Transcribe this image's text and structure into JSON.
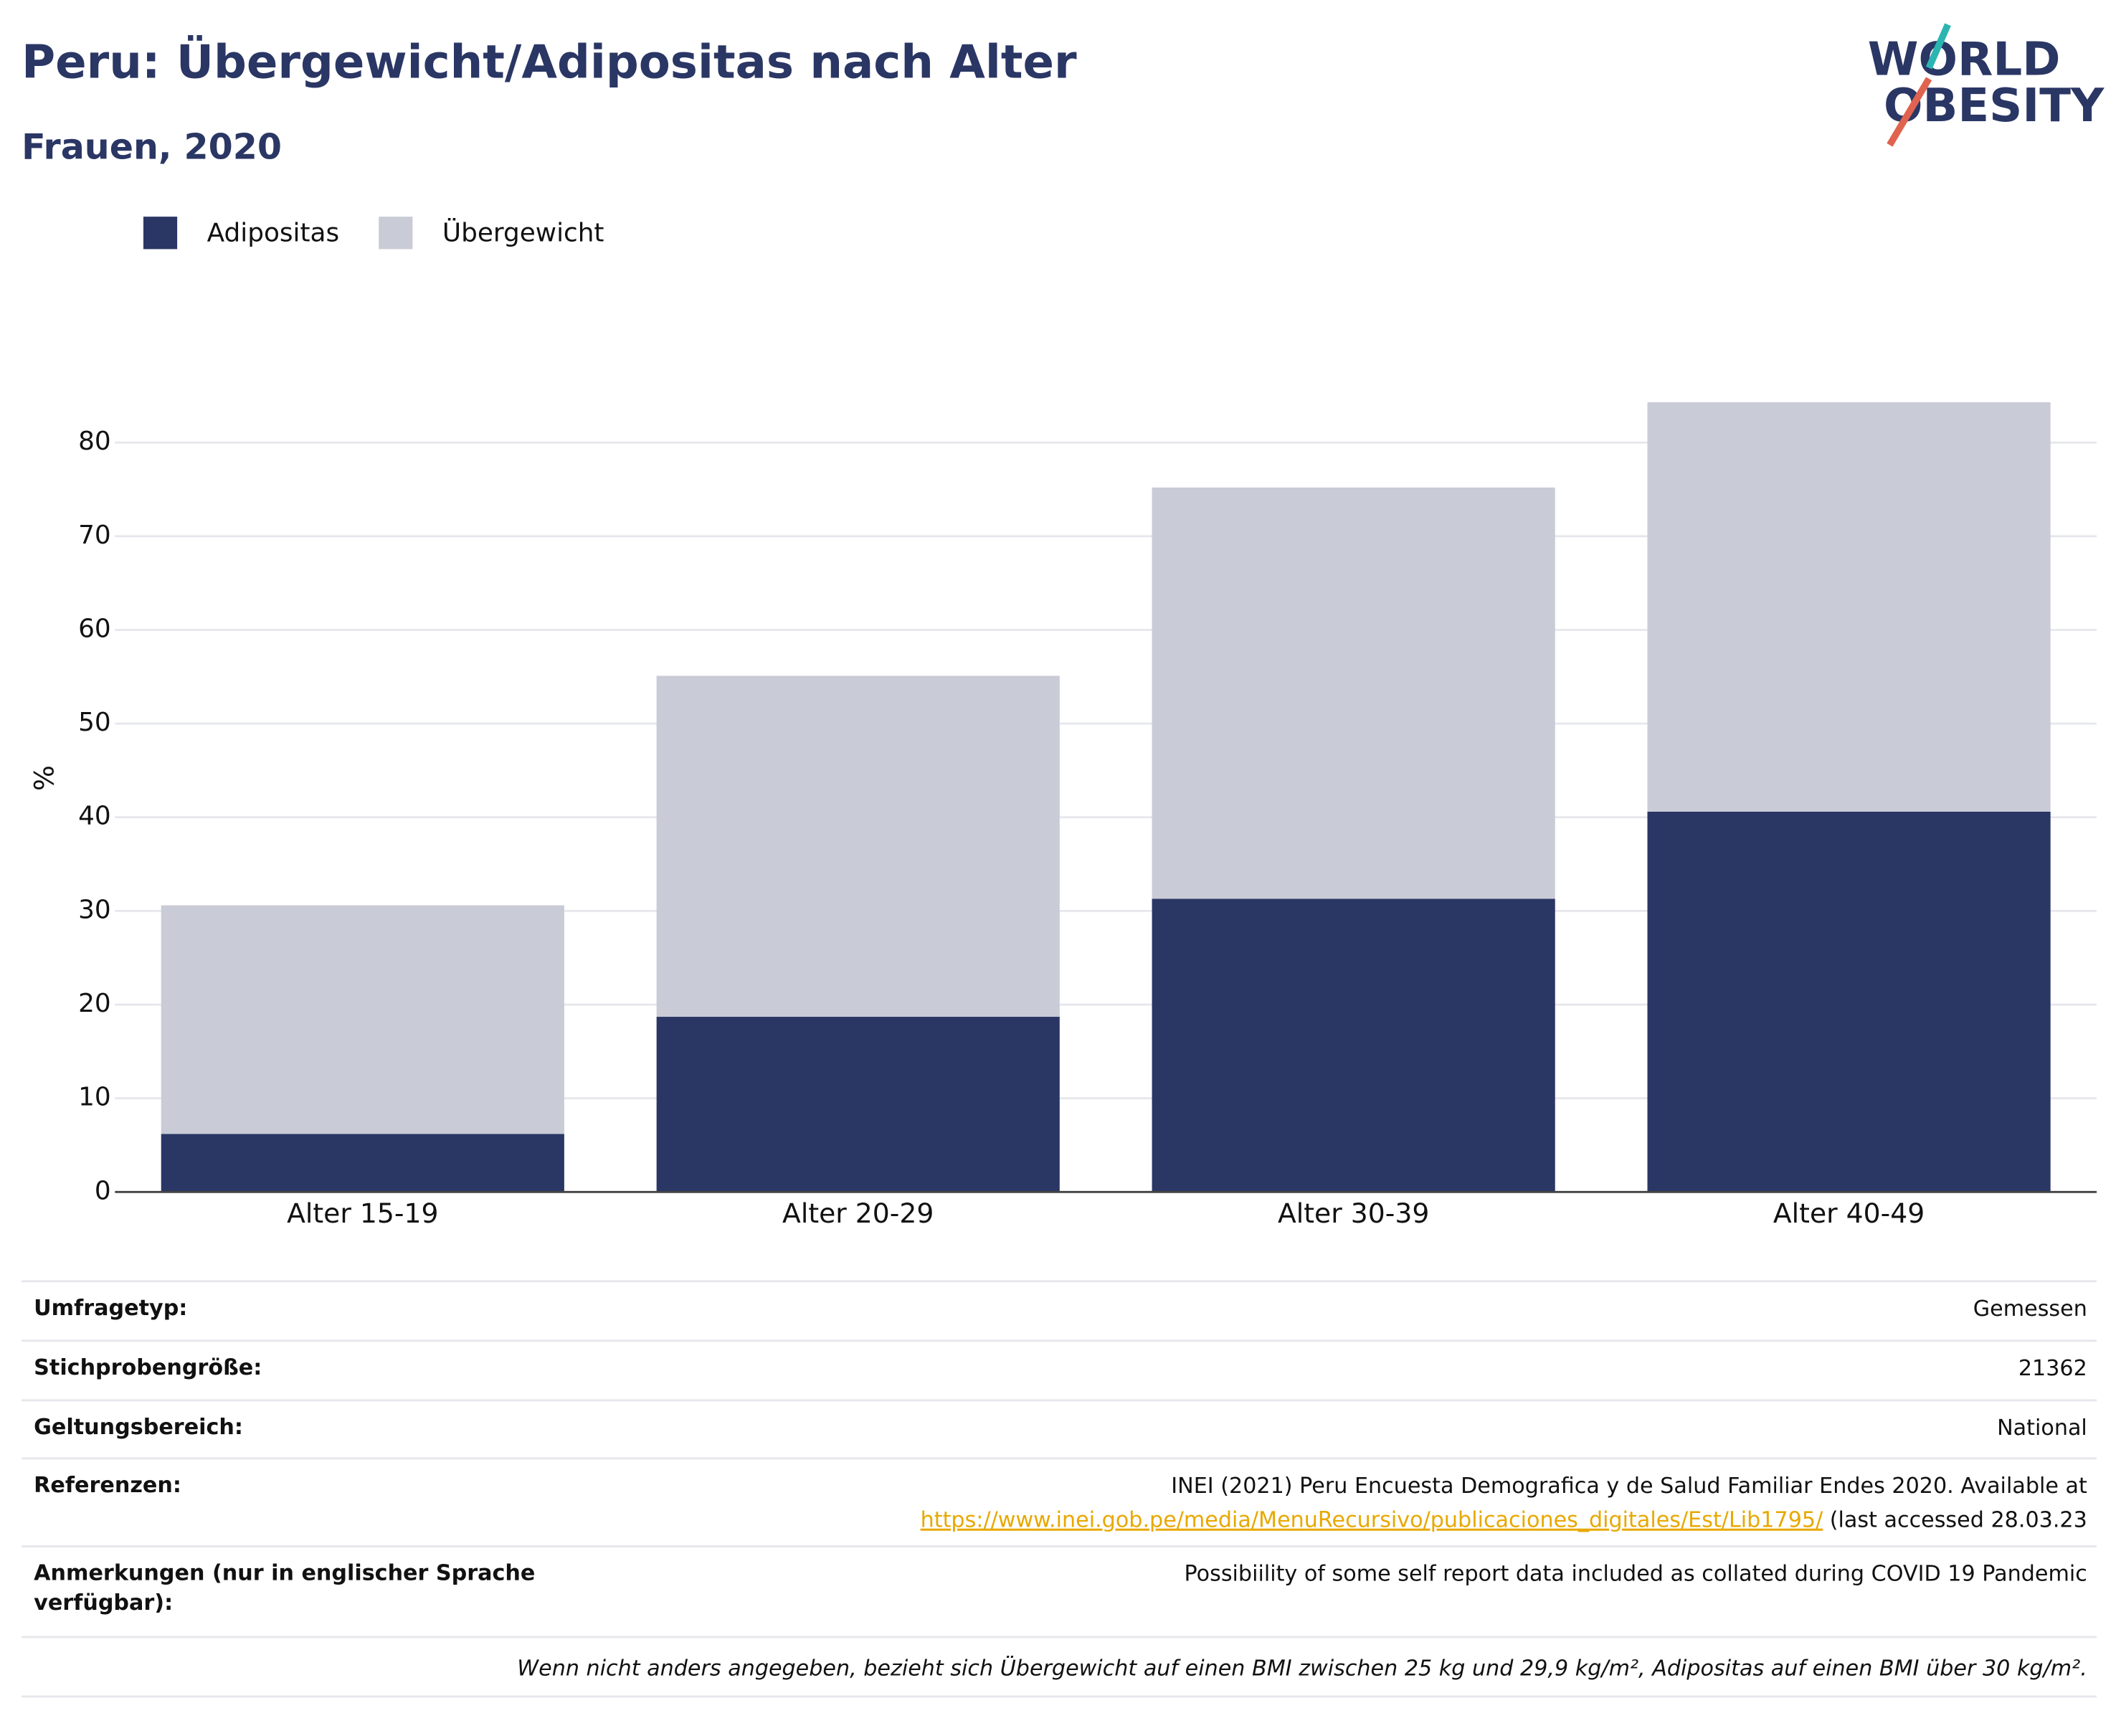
{
  "chart_data": {
    "type": "stacked_bar",
    "title": "Peru: Übergewicht/Adipositas nach Alter",
    "subtitle": "Frauen, 2020",
    "y_label": "%",
    "categories": [
      "Alter 15-19",
      "Alter 20-29",
      "Alter 30-39",
      "Alter 40-49"
    ],
    "series": [
      {
        "name": "Adipositas",
        "color": "#2a3664",
        "values": [
          6.2,
          18.7,
          31.3,
          40.6
        ]
      },
      {
        "name": "Übergewicht",
        "color": "#c9cbd6",
        "values": [
          24.4,
          36.4,
          43.9,
          43.7
        ]
      }
    ],
    "ylim": [
      0,
      85
    ],
    "yticks": [
      0,
      10,
      20,
      30,
      40,
      50,
      60,
      70,
      80
    ],
    "grid": true,
    "legend": "top-left"
  },
  "logo": {
    "line1": "WORLD",
    "line2": "OBESITY"
  },
  "table": {
    "rows": [
      {
        "label": "Umfragetyp:",
        "value": "Gemessen"
      },
      {
        "label": "Stichprobengröße:",
        "value": "21362"
      },
      {
        "label": "Geltungsbereich:",
        "value": "National"
      },
      {
        "label": "Referenzen:",
        "value": "INEI (2021) Peru Encuesta Demografica y de Salud Familiar Endes 2020. Available at",
        "link": "https://www.inei.gob.pe/media/MenuRecursivo/publicaciones_digitales/Est/Lib1795/",
        "suffix": "(last accessed 28.03.23"
      },
      {
        "label": "Anmerkungen (nur in englischer Sprache verfügbar):",
        "value": "Possibiility of some self report data included as collated during COVID 19 Pandemic"
      }
    ],
    "footnote": "Wenn nicht anders angegeben, bezieht sich Übergewicht auf einen BMI zwischen 25 kg und 29,9 kg/m², Adipositas auf einen BMI über 30 kg/m²."
  }
}
